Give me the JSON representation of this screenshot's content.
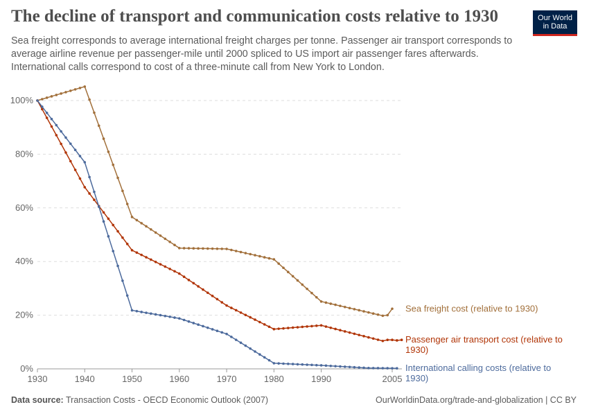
{
  "header": {
    "title": "The decline of transport and communication costs relative to 1930",
    "subtitle": "Sea freight corresponds to average international freight charges per tonne. Passenger air transport corresponds to average airline revenue per passenger-mile until 2000 spliced to US import air passenger fares afterwards. International calls correspond to cost of a three-minute call from New York to London.",
    "logo_line1": "Our World",
    "logo_line2": "in Data"
  },
  "footer": {
    "source_label": "Data source:",
    "source_text": "Transaction Costs - OECD Economic Outlook (2007)",
    "right": "OurWorldinData.org/trade-and-globalization | CC BY"
  },
  "chart_data": {
    "type": "line",
    "xlim": [
      1930,
      2005
    ],
    "ylim": [
      0,
      100
    ],
    "x_ticks": [
      "1930",
      "1940",
      "1950",
      "1960",
      "1970",
      "1980",
      "1990",
      "2005"
    ],
    "y_ticks": [
      "0%",
      "20%",
      "40%",
      "60%",
      "80%",
      "100%"
    ],
    "grid": "horizontal dashed",
    "legend": "right, inline labels",
    "series": [
      {
        "name": "Sea freight cost (relative to 1930)",
        "color": "#a2703b",
        "points": [
          [
            1930,
            100
          ],
          [
            1940,
            105.2
          ],
          [
            1950,
            56.6
          ],
          [
            1960,
            45.0
          ],
          [
            1970,
            44.7
          ],
          [
            1980,
            40.8
          ],
          [
            1990,
            25.1
          ],
          [
            2003,
            19.8
          ],
          [
            2004,
            20.0
          ],
          [
            2005,
            22.4
          ]
        ]
      },
      {
        "name": "Passenger air transport cost (relative to 1930)",
        "color": "#b13507",
        "points": [
          [
            1930,
            100
          ],
          [
            1940,
            67.7
          ],
          [
            1950,
            44.2
          ],
          [
            1960,
            35.5
          ],
          [
            1970,
            23.6
          ],
          [
            1980,
            14.8
          ],
          [
            1990,
            16.2
          ],
          [
            2003,
            10.4
          ],
          [
            2004,
            10.8
          ],
          [
            2005,
            10.8
          ],
          [
            2006,
            10.6
          ],
          [
            2007,
            10.8
          ]
        ]
      },
      {
        "name": "International calling costs (relative to 1930)",
        "color": "#4c6a9c",
        "points": [
          [
            1930,
            100
          ],
          [
            1940,
            77.0
          ],
          [
            1950,
            21.8
          ],
          [
            1960,
            18.8
          ],
          [
            1970,
            13.0
          ],
          [
            1980,
            2.1
          ],
          [
            1990,
            1.3
          ],
          [
            2000,
            0.3
          ],
          [
            2006,
            0.2
          ]
        ]
      }
    ]
  }
}
